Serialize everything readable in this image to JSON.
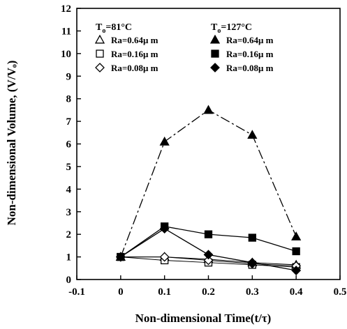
{
  "chart_data": {
    "type": "line",
    "xlabel": "Non-dimensional Time(t/τ)",
    "ylabel": "Non-dimensional Volume, (V/Vₒ)",
    "xlim": [
      -0.1,
      0.5
    ],
    "ylim": [
      0,
      12
    ],
    "xticks": [
      "-0.1",
      "0",
      "0.1",
      "0.2",
      "0.3",
      "0.4",
      "0.5"
    ],
    "yticks": [
      "0",
      "1",
      "2",
      "3",
      "4",
      "5",
      "6",
      "7",
      "8",
      "9",
      "10",
      "11",
      "12"
    ],
    "grid": false,
    "legend_position": "top",
    "legend_groups": [
      {
        "header_main": "T",
        "header_sub": "o",
        "header_rest": "=81°C"
      },
      {
        "header_main": "T",
        "header_sub": "o",
        "header_rest": "=127°C"
      }
    ],
    "series": [
      {
        "name": "Ra=0.64μ m",
        "group": 0,
        "marker": "triangle",
        "filled": false,
        "dash": "none",
        "x": [
          0,
          0.1,
          0.2,
          0.3,
          0.4
        ],
        "y": [
          1.0,
          1.0,
          0.9,
          0.75,
          0.65
        ]
      },
      {
        "name": "Ra=0.16μ m",
        "group": 0,
        "marker": "square",
        "filled": false,
        "dash": "none",
        "x": [
          0,
          0.1,
          0.2,
          0.3,
          0.4
        ],
        "y": [
          1.0,
          0.85,
          0.75,
          0.65,
          0.55
        ]
      },
      {
        "name": "Ra=0.08μ m",
        "group": 0,
        "marker": "diamond",
        "filled": false,
        "dash": "none",
        "x": [
          0,
          0.1,
          0.2,
          0.3,
          0.4
        ],
        "y": [
          1.0,
          1.0,
          0.85,
          0.7,
          0.6
        ]
      },
      {
        "name": "Ra=0.64μ m",
        "group": 1,
        "marker": "triangle",
        "filled": true,
        "dash": "dashdot",
        "x": [
          0,
          0.1,
          0.2,
          0.3,
          0.4
        ],
        "y": [
          1.0,
          6.1,
          7.5,
          6.4,
          1.9
        ]
      },
      {
        "name": "Ra=0.16μ m",
        "group": 1,
        "marker": "square",
        "filled": true,
        "dash": "none",
        "x": [
          0,
          0.1,
          0.2,
          0.3,
          0.4
        ],
        "y": [
          1.0,
          2.35,
          2.0,
          1.85,
          1.25
        ]
      },
      {
        "name": "Ra=0.08μ m",
        "group": 1,
        "marker": "diamond",
        "filled": true,
        "dash": "none",
        "x": [
          0,
          0.1,
          0.2,
          0.3,
          0.4
        ],
        "y": [
          1.0,
          2.25,
          1.1,
          0.75,
          0.4
        ]
      }
    ]
  }
}
